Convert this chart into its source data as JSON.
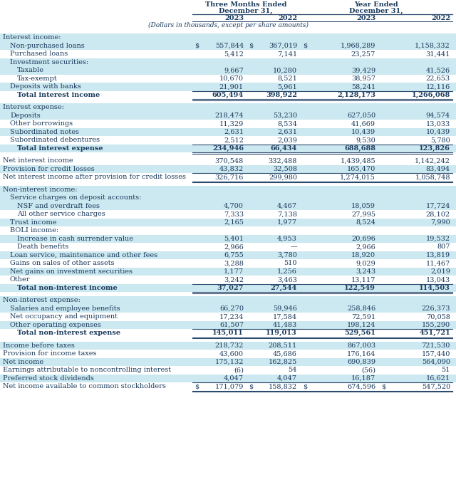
{
  "subtitle": "(Dollars in thousands, except per share amounts)",
  "rows": [
    {
      "label": "Interest income:",
      "indent": 0,
      "values": [
        "",
        "",
        "",
        ""
      ],
      "type": "section_header",
      "bg": "light_blue"
    },
    {
      "label": "Non-purchased loans",
      "indent": 1,
      "values": [
        "557,844",
        "367,019",
        "1,968,289",
        "1,158,332"
      ],
      "type": "data",
      "bg": "light_blue",
      "show_dollar": [
        true,
        true,
        true,
        false
      ]
    },
    {
      "label": "Purchased loans",
      "indent": 1,
      "values": [
        "5,412",
        "7,141",
        "23,257",
        "31,441"
      ],
      "type": "data",
      "bg": "white"
    },
    {
      "label": "Investment securities:",
      "indent": 1,
      "values": [
        "",
        "",
        "",
        ""
      ],
      "type": "sub_header",
      "bg": "light_blue"
    },
    {
      "label": "Taxable",
      "indent": 2,
      "values": [
        "9,667",
        "10,280",
        "39,429",
        "41,526"
      ],
      "type": "data",
      "bg": "light_blue"
    },
    {
      "label": "Tax-exempt",
      "indent": 2,
      "values": [
        "10,670",
        "8,521",
        "38,957",
        "22,653"
      ],
      "type": "data",
      "bg": "white"
    },
    {
      "label": "Deposits with banks",
      "indent": 1,
      "values": [
        "21,901",
        "5,961",
        "58,241",
        "12,116"
      ],
      "type": "data",
      "bg": "light_blue"
    },
    {
      "label": "Total interest income",
      "indent": 2,
      "values": [
        "605,494",
        "398,922",
        "2,128,173",
        "1,266,068"
      ],
      "type": "total",
      "bg": "white",
      "top_border": true,
      "double_bottom": true
    },
    {
      "label": "",
      "indent": 0,
      "values": [
        "",
        "",
        "",
        ""
      ],
      "type": "spacer",
      "bg": "white"
    },
    {
      "label": "Interest expense:",
      "indent": 0,
      "values": [
        "",
        "",
        "",
        ""
      ],
      "type": "section_header",
      "bg": "light_blue"
    },
    {
      "label": "Deposits",
      "indent": 1,
      "values": [
        "218,474",
        "53,230",
        "627,050",
        "94,574"
      ],
      "type": "data",
      "bg": "light_blue"
    },
    {
      "label": "Other borrowings",
      "indent": 1,
      "values": [
        "11,329",
        "8,534",
        "41,669",
        "13,033"
      ],
      "type": "data",
      "bg": "white"
    },
    {
      "label": "Subordinated notes",
      "indent": 1,
      "values": [
        "2,631",
        "2,631",
        "10,439",
        "10,439"
      ],
      "type": "data",
      "bg": "light_blue"
    },
    {
      "label": "Subordinated debentures",
      "indent": 1,
      "values": [
        "2,512",
        "2,039",
        "9,530",
        "5,780"
      ],
      "type": "data",
      "bg": "white"
    },
    {
      "label": "Total interest expense",
      "indent": 2,
      "values": [
        "234,946",
        "66,434",
        "688,688",
        "123,826"
      ],
      "type": "total",
      "bg": "light_blue",
      "top_border": true,
      "double_bottom": true
    },
    {
      "label": "",
      "indent": 0,
      "values": [
        "",
        "",
        "",
        ""
      ],
      "type": "spacer",
      "bg": "white"
    },
    {
      "label": "Net interest income",
      "indent": 0,
      "values": [
        "370,548",
        "332,488",
        "1,439,485",
        "1,142,242"
      ],
      "type": "data",
      "bg": "white"
    },
    {
      "label": "Provision for credit losses",
      "indent": 0,
      "values": [
        "43,832",
        "32,508",
        "165,470",
        "83,494"
      ],
      "type": "data",
      "bg": "light_blue"
    },
    {
      "label": "Net interest income after provision for credit losses",
      "indent": 0,
      "values": [
        "326,716",
        "299,980",
        "1,274,015",
        "1,058,748"
      ],
      "type": "data",
      "bg": "white",
      "top_border": true,
      "double_bottom": true
    },
    {
      "label": "",
      "indent": 0,
      "values": [
        "",
        "",
        "",
        ""
      ],
      "type": "spacer",
      "bg": "white"
    },
    {
      "label": "Non-interest income:",
      "indent": 0,
      "values": [
        "",
        "",
        "",
        ""
      ],
      "type": "section_header",
      "bg": "light_blue"
    },
    {
      "label": "Service charges on deposit accounts:",
      "indent": 1,
      "values": [
        "",
        "",
        "",
        ""
      ],
      "type": "sub_header",
      "bg": "light_blue"
    },
    {
      "label": "NSF and overdraft fees",
      "indent": 2,
      "values": [
        "4,700",
        "4,467",
        "18,059",
        "17,724"
      ],
      "type": "data",
      "bg": "light_blue"
    },
    {
      "label": "All other service charges",
      "indent": 2,
      "values": [
        "7,333",
        "7,138",
        "27,995",
        "28,102"
      ],
      "type": "data",
      "bg": "white"
    },
    {
      "label": "Trust income",
      "indent": 1,
      "values": [
        "2,165",
        "1,977",
        "8,524",
        "7,990"
      ],
      "type": "data",
      "bg": "light_blue"
    },
    {
      "label": "BOLI income:",
      "indent": 1,
      "values": [
        "",
        "",
        "",
        ""
      ],
      "type": "sub_header",
      "bg": "white"
    },
    {
      "label": "Increase in cash surrender value",
      "indent": 2,
      "values": [
        "5,401",
        "4,953",
        "20,696",
        "19,532"
      ],
      "type": "data",
      "bg": "light_blue"
    },
    {
      "label": "Death benefits",
      "indent": 2,
      "values": [
        "2,966",
        "—",
        "2,966",
        "807"
      ],
      "type": "data",
      "bg": "white"
    },
    {
      "label": "Loan service, maintenance and other fees",
      "indent": 1,
      "values": [
        "6,755",
        "3,780",
        "18,920",
        "13,819"
      ],
      "type": "data",
      "bg": "light_blue"
    },
    {
      "label": "Gains on sales of other assets",
      "indent": 1,
      "values": [
        "3,288",
        "510",
        "9,029",
        "11,467"
      ],
      "type": "data",
      "bg": "white"
    },
    {
      "label": "Net gains on investment securities",
      "indent": 1,
      "values": [
        "1,177",
        "1,256",
        "3,243",
        "2,019"
      ],
      "type": "data",
      "bg": "light_blue"
    },
    {
      "label": "Other",
      "indent": 1,
      "values": [
        "3,242",
        "3,463",
        "13,117",
        "13,043"
      ],
      "type": "data",
      "bg": "white"
    },
    {
      "label": "Total non-interest income",
      "indent": 2,
      "values": [
        "37,027",
        "27,544",
        "122,549",
        "114,503"
      ],
      "type": "total",
      "bg": "light_blue",
      "top_border": true,
      "double_bottom": true
    },
    {
      "label": "",
      "indent": 0,
      "values": [
        "",
        "",
        "",
        ""
      ],
      "type": "spacer",
      "bg": "white"
    },
    {
      "label": "Non-interest expense:",
      "indent": 0,
      "values": [
        "",
        "",
        "",
        ""
      ],
      "type": "section_header",
      "bg": "light_blue"
    },
    {
      "label": "Salaries and employee benefits",
      "indent": 1,
      "values": [
        "66,270",
        "59,946",
        "258,846",
        "226,373"
      ],
      "type": "data",
      "bg": "light_blue"
    },
    {
      "label": "Net occupancy and equipment",
      "indent": 1,
      "values": [
        "17,234",
        "17,584",
        "72,591",
        "70,058"
      ],
      "type": "data",
      "bg": "white"
    },
    {
      "label": "Other operating expenses",
      "indent": 1,
      "values": [
        "61,507",
        "41,483",
        "198,124",
        "155,290"
      ],
      "type": "data",
      "bg": "light_blue"
    },
    {
      "label": "Total non-interest expense",
      "indent": 2,
      "values": [
        "145,011",
        "119,013",
        "529,561",
        "451,721"
      ],
      "type": "total",
      "bg": "white",
      "top_border": true,
      "double_bottom": true
    },
    {
      "label": "",
      "indent": 0,
      "values": [
        "",
        "",
        "",
        ""
      ],
      "type": "spacer",
      "bg": "white"
    },
    {
      "label": "Income before taxes",
      "indent": 0,
      "values": [
        "218,732",
        "208,511",
        "867,003",
        "721,530"
      ],
      "type": "data",
      "bg": "light_blue"
    },
    {
      "label": "Provision for income taxes",
      "indent": 0,
      "values": [
        "43,600",
        "45,686",
        "176,164",
        "157,440"
      ],
      "type": "data",
      "bg": "white"
    },
    {
      "label": "Net income",
      "indent": 0,
      "values": [
        "175,132",
        "162,825",
        "690,839",
        "564,090"
      ],
      "type": "data",
      "bg": "light_blue"
    },
    {
      "label": "Earnings attributable to noncontrolling interest",
      "indent": 0,
      "values": [
        "(6)",
        "54",
        "(56)",
        "51"
      ],
      "type": "data",
      "bg": "white"
    },
    {
      "label": "Preferred stock dividends",
      "indent": 0,
      "values": [
        "4,047",
        "4,047",
        "16,187",
        "16,621"
      ],
      "type": "data",
      "bg": "light_blue"
    },
    {
      "label": "Net income available to common stockholders",
      "indent": 0,
      "values": [
        "171,079",
        "158,832",
        "674,596",
        "547,520"
      ],
      "type": "data",
      "bg": "white",
      "top_border": true,
      "double_bottom": true,
      "show_dollar": [
        true,
        true,
        true,
        true
      ]
    }
  ],
  "colors": {
    "light_blue": "#cce8f0",
    "white": "#ffffff",
    "text_dark": "#1a3a5c",
    "border_color": "#2c4a6e"
  }
}
